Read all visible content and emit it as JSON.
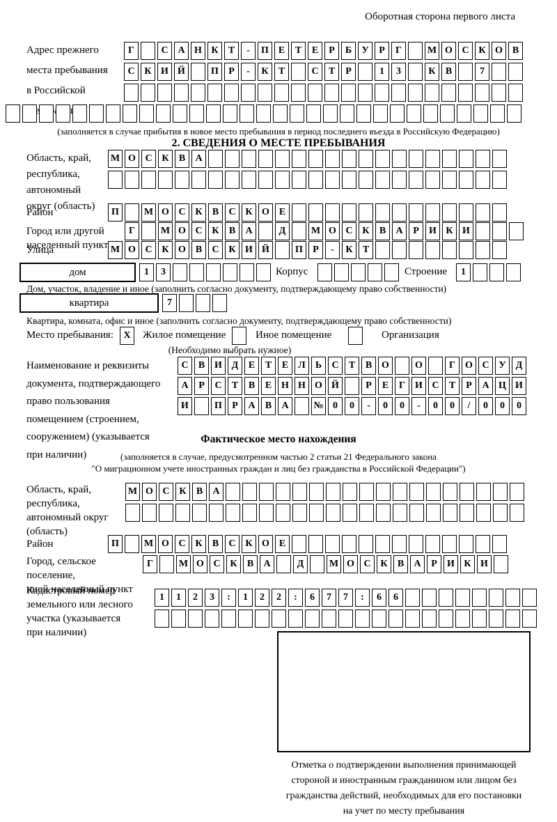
{
  "colors": {
    "ink": "#000000",
    "paper": "#ffffff"
  },
  "header": {
    "note": "Оборотная сторона первого листа"
  },
  "prev_address": {
    "label": [
      "Адрес прежнего",
      "места пребывания",
      "в Российской",
      "Федерации"
    ],
    "row1": {
      "t": "Г САНКТ-ПЕТЕРБУРГ МОСКОВ",
      "n": 24
    },
    "row2": {
      "t": "СКИЙ ПР-КТ СТР 13 КВ 7",
      "n": 24
    },
    "row3": {
      "t": "",
      "n": 24
    },
    "row4": {
      "t": "",
      "n": 31
    },
    "note": "(заполняется в случае прибытия в новое место пребывания в период последнего въезда в Российскую Федерацию)"
  },
  "section2": {
    "title": "2. СВЕДЕНИЯ О МЕСТЕ ПРЕБЫВАНИЯ",
    "oblast_label": [
      "Область, край,",
      "республика,",
      "автономный",
      "округ (область)"
    ],
    "oblast_row1": {
      "t": "МОСКВА",
      "n": 24
    },
    "oblast_row2": {
      "t": "",
      "n": 24
    },
    "raion_label": "Район",
    "raion_row": {
      "t": "П МОСКВСКОЕ",
      "n": 24
    },
    "gorod_label": [
      "Город или другой",
      "населенный пункт"
    ],
    "gorod_row": {
      "t": "Г МОСКВА Д МОСКВАРИКИ",
      "n": 24
    },
    "ulitsa_label": "Улица",
    "ulitsa_row": {
      "t": "МОСКОВСКИЙ ПР-КТ",
      "n": 24
    },
    "dom_label": "дом",
    "dom_cells": {
      "t": "13",
      "n": 8
    },
    "korpus_label": "Корпус",
    "korpus_cells": {
      "t": "",
      "n": 5
    },
    "stroenie_label": "Строение",
    "stroenie_cells": {
      "t": "1",
      "n": 4
    },
    "dom_caption": "Дом, участок, владение и иное (заполнить согласно документу, подтверждающему право собственности)",
    "kvartira_label": "квартира",
    "kvartira_cells": {
      "t": "7",
      "n": 4
    },
    "kvartira_caption": "Квартира, комната, офис и иное (заполнить согласно документу, подтверждающему право собственности)",
    "mesto_label": "Место пребывания:",
    "options": [
      {
        "mark": "X",
        "label": "Жилое помещение"
      },
      {
        "mark": "",
        "label": "Иное помещение"
      },
      {
        "mark": "",
        "label": "Организация"
      }
    ],
    "mesto_note": "(Необходимо выбрать нужное)",
    "doc_label": [
      "Наименование и реквизиты",
      "документа, подтверждающего",
      "право пользования",
      "помещением (строением,",
      "сооружением) (указывается",
      "при наличии)"
    ],
    "doc_row1": {
      "t": "СВИДЕТЕЛЬСТВО О ГОСУД",
      "n": 21
    },
    "doc_row2": {
      "t": "АРСТВЕННОЙ РЕГИСТРАЦИ",
      "n": 21
    },
    "doc_row3": {
      "t": "И ПРАВА №00-00-00/000",
      "n": 21
    }
  },
  "fact": {
    "title": "Фактическое место нахождения",
    "note1": "(заполняется в случае, предусмотренном частью 2 статьи 21 Федерального закона",
    "note2": "\"О миграционном учете иностранных граждан и лиц без гражданства в Российской Федерации\")",
    "oblast_label": [
      "Область, край,",
      "республика,",
      "автономный округ",
      "(область)"
    ],
    "oblast_row1": {
      "t": "МОСКВА",
      "n": 24
    },
    "oblast_row2": {
      "t": "",
      "n": 24
    },
    "raion_label": "Район",
    "raion_row": {
      "t": "П МОСКВСКОЕ",
      "n": 24
    },
    "gorod_label": [
      "Город, сельское поселение,",
      "иной населенный пункт"
    ],
    "gorod_row": {
      "t": "Г МОСКВА Д МОСКВАРИКИ",
      "n": 22
    },
    "kadastr_label": [
      "Кадастровый номер",
      "земельного или лесного",
      "участка (указывается",
      "при наличии)"
    ],
    "kadastr_row1": {
      "t": "1123:122:677:66",
      "n": 23
    },
    "kadastr_row2": {
      "t": "",
      "n": 23
    },
    "stamp_caption": [
      "Отметка о подтверждении выполнения принимающей",
      "стороной и иностранным гражданином или лицом без",
      "гражданства действий, необходимых для его постановки",
      "на учет по месту пребывания"
    ]
  }
}
